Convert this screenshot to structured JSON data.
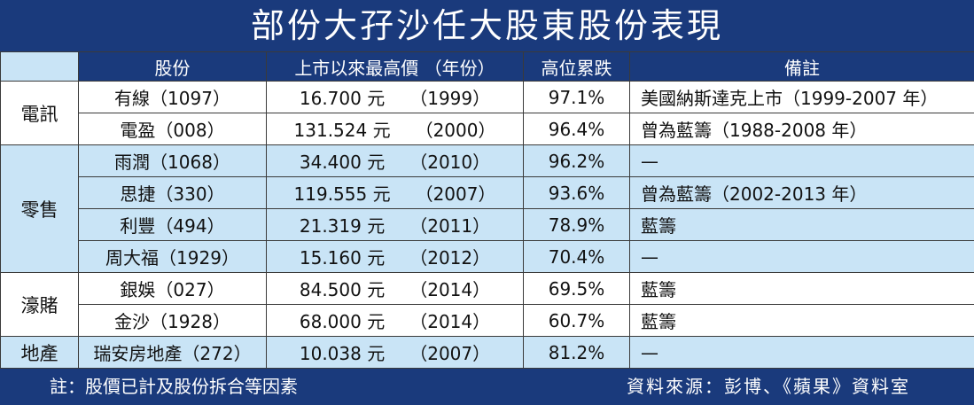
{
  "title": "部份大孖沙任大股東股份表現",
  "header": {
    "corner": "",
    "stock": "股份",
    "high": "上市以來最高價 （年份）",
    "drop": "高位累跌",
    "note": "備註"
  },
  "groups": [
    {
      "name": "電訊",
      "rows": [
        {
          "stock": "有線（1097）",
          "price": "16.700 元",
          "year": "（1999）",
          "drop": "97.1%",
          "note": "美國納斯達克上市（1999-2007 年）"
        },
        {
          "stock": "電盈（008）",
          "price": "131.524 元",
          "year": "（2000）",
          "drop": "96.4%",
          "note": "曾為藍籌（1988-2008 年）"
        }
      ]
    },
    {
      "name": "零售",
      "rows": [
        {
          "stock": "雨潤（1068）",
          "price": "34.400 元",
          "year": "（2010）",
          "drop": "96.2%",
          "note": "—"
        },
        {
          "stock": "思捷（330）",
          "price": "119.555 元",
          "year": "（2007）",
          "drop": "93.6%",
          "note": "曾為藍籌（2002-2013 年）"
        },
        {
          "stock": "利豐（494）",
          "price": "21.319 元",
          "year": "（2011）",
          "drop": "78.9%",
          "note": "藍籌"
        },
        {
          "stock": "周大福（1929）",
          "price": "15.160 元",
          "year": "（2012）",
          "drop": "70.4%",
          "note": "—"
        }
      ]
    },
    {
      "name": "濠賭",
      "rows": [
        {
          "stock": "銀娛（027）",
          "price": "84.500 元",
          "year": "（2014）",
          "drop": "69.5%",
          "note": "藍籌"
        },
        {
          "stock": "金沙（1928）",
          "price": "68.000 元",
          "year": "（2014）",
          "drop": "60.7%",
          "note": "藍籌"
        }
      ]
    },
    {
      "name": "地產",
      "rows": [
        {
          "stock": "瑞安房地產（272）",
          "price": "10.038 元",
          "year": "（2007）",
          "drop": "81.2%",
          "note": "—"
        }
      ]
    }
  ],
  "footer": {
    "footnote": "註：股價已計及股份拆合等因素",
    "source": "資料來源：彭博、《蘋果》資料室"
  },
  "colors": {
    "header_bg": "#1a3a7c",
    "band_light_blue": "#c9e4f6",
    "band_white": "#ffffff",
    "grid_line": "#3a3a3a"
  }
}
